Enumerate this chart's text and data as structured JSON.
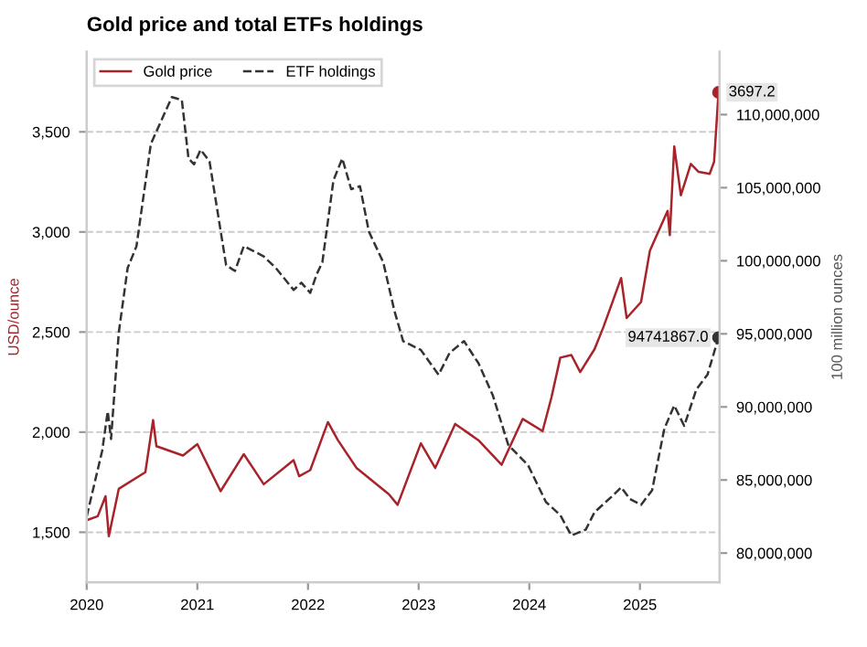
{
  "chart_data": {
    "type": "line",
    "title": "Gold price and total ETFs holdings",
    "ylabel": "USD/ounce",
    "y2label": "100 million ounces",
    "xlim": [
      2020,
      2025.72
    ],
    "xticks": [
      2020,
      2021,
      2022,
      2023,
      2024,
      2025
    ],
    "ylim": [
      1250,
      3900
    ],
    "yticks": [
      {
        "value": 1500,
        "label": "1,500"
      },
      {
        "value": 2000,
        "label": "2,000"
      },
      {
        "value": 2500,
        "label": "2,500"
      },
      {
        "value": 3000,
        "label": "3,000"
      },
      {
        "value": 3500,
        "label": "3,500"
      }
    ],
    "y2lim": [
      78000000,
      114300000
    ],
    "y2ticks": [
      {
        "value": 80000000,
        "label": "80,000,000"
      },
      {
        "value": 85000000,
        "label": "85,000,000"
      },
      {
        "value": 90000000,
        "label": "90,000,000"
      },
      {
        "value": 95000000,
        "label": "95,000,000"
      },
      {
        "value": 100000000,
        "label": "100,000,000"
      },
      {
        "value": 105000000,
        "label": "105,000,000"
      },
      {
        "value": 110000000,
        "label": "110,000,000"
      }
    ],
    "grid": "y",
    "legend": "top left",
    "series": [
      {
        "name": "Gold price",
        "color": "#a8232a",
        "line_style": "solid",
        "x": [
          2020.0,
          2020.1,
          2020.17,
          2020.2,
          2020.29,
          2020.53,
          2020.6,
          2020.63,
          2020.87,
          2021.0,
          2021.21,
          2021.42,
          2021.6,
          2021.87,
          2021.92,
          2022.02,
          2022.18,
          2022.27,
          2022.44,
          2022.73,
          2022.81,
          2023.02,
          2023.15,
          2023.33,
          2023.54,
          2023.75,
          2023.94,
          2024.12,
          2024.2,
          2024.28,
          2024.38,
          2024.46,
          2024.59,
          2024.67,
          2024.75,
          2024.83,
          2024.88,
          2025.01,
          2025.09,
          2025.25,
          2025.27,
          2025.31,
          2025.37,
          2025.46,
          2025.53,
          2025.63,
          2025.67,
          2025.71
        ],
        "values": [
          1560,
          1580,
          1680,
          1480,
          1717,
          1800,
          2060,
          1930,
          1883,
          1940,
          1705,
          1890,
          1740,
          1860,
          1780,
          1810,
          2050,
          1960,
          1820,
          1690,
          1637,
          1944,
          1821,
          2041,
          1960,
          1837,
          2066,
          2005,
          2173,
          2372,
          2385,
          2300,
          2415,
          2525,
          2647,
          2770,
          2570,
          2650,
          2907,
          3105,
          2984,
          3427,
          3183,
          3340,
          3300,
          3290,
          3350,
          3697.2
        ],
        "value_labels": [
          null,
          null,
          null,
          null,
          null,
          null,
          null,
          null,
          null,
          null,
          null,
          null,
          null,
          null,
          null,
          null,
          null,
          null,
          null,
          null,
          null,
          null,
          null,
          null,
          null,
          null,
          null,
          null,
          null,
          null,
          null,
          null,
          null,
          null,
          null,
          null,
          null,
          null,
          null,
          null,
          null,
          null,
          null,
          null,
          null,
          null,
          null,
          "3697.2"
        ]
      },
      {
        "name": "ETF holdings",
        "color": "#333333",
        "line_style": "dashed",
        "axis": "y2",
        "x": [
          2020.0,
          2020.14,
          2020.19,
          2020.22,
          2020.29,
          2020.37,
          2020.45,
          2020.58,
          2020.77,
          2020.86,
          2020.92,
          2020.97,
          2021.03,
          2021.11,
          2021.26,
          2021.34,
          2021.42,
          2021.6,
          2021.71,
          2021.87,
          2021.94,
          2022.02,
          2022.08,
          2022.13,
          2022.23,
          2022.31,
          2022.39,
          2022.47,
          2022.55,
          2022.68,
          2022.78,
          2022.86,
          2023.02,
          2023.18,
          2023.28,
          2023.41,
          2023.54,
          2023.67,
          2023.81,
          2023.99,
          2024.15,
          2024.28,
          2024.38,
          2024.51,
          2024.59,
          2024.75,
          2024.83,
          2024.91,
          2025.01,
          2025.11,
          2025.22,
          2025.31,
          2025.4,
          2025.51,
          2025.61,
          2025.71
        ],
        "values": [
          82500000,
          87000000,
          89700000,
          87800000,
          95100000,
          99500000,
          101000000,
          108000000,
          111200000,
          111000000,
          107000000,
          106600000,
          107600000,
          106800000,
          99700000,
          99300000,
          101000000,
          100300000,
          99500000,
          98000000,
          98500000,
          97800000,
          99100000,
          99900000,
          105500000,
          107000000,
          104900000,
          105100000,
          102000000,
          99900000,
          96600000,
          94500000,
          93900000,
          92200000,
          93700000,
          94500000,
          93000000,
          90800000,
          87400000,
          86000000,
          83500000,
          82600000,
          81200000,
          81600000,
          82800000,
          83900000,
          84500000,
          83700000,
          83300000,
          84300000,
          88500000,
          90100000,
          88700000,
          91200000,
          92200000,
          94741867.0
        ],
        "value_labels": [
          null,
          null,
          null,
          null,
          null,
          null,
          null,
          null,
          null,
          null,
          null,
          null,
          null,
          null,
          null,
          null,
          null,
          null,
          null,
          null,
          null,
          null,
          null,
          null,
          null,
          null,
          null,
          null,
          null,
          null,
          null,
          null,
          null,
          null,
          null,
          null,
          null,
          null,
          null,
          null,
          null,
          null,
          null,
          null,
          null,
          null,
          null,
          null,
          null,
          null,
          null,
          null,
          null,
          null,
          null,
          "94741867.0"
        ]
      }
    ]
  }
}
